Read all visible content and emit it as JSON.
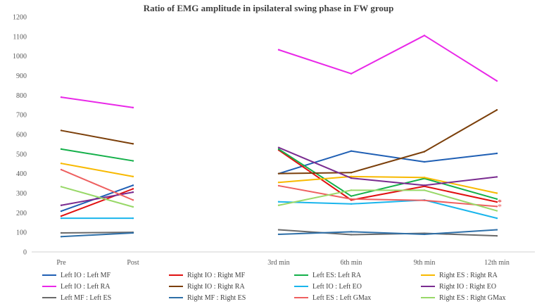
{
  "chart_data": {
    "type": "line",
    "title": "Ratio of EMG amplitude in ipsilateral swing phase in FW group",
    "xlabel": "",
    "ylabel": "",
    "ylim": [
      0,
      1200
    ],
    "yticks": [
      0,
      100,
      200,
      300,
      400,
      500,
      600,
      700,
      800,
      900,
      1000,
      1100,
      1200
    ],
    "grid": false,
    "legend_position": "bottom",
    "categories": [
      "Pre",
      "Post",
      "",
      "3rd min",
      "6th min",
      "9th min",
      "12th min"
    ],
    "series": [
      {
        "name": "Left IO : Left MF",
        "color": "#1f5fb4",
        "values": [
          208,
          340,
          null,
          400,
          515,
          460,
          503
        ]
      },
      {
        "name": "Right IO : Right MF",
        "color": "#e01010",
        "values": [
          183,
          322,
          null,
          520,
          265,
          335,
          255
        ]
      },
      {
        "name": "Left ES: Left RA",
        "color": "#14b04a",
        "values": [
          525,
          465,
          null,
          525,
          285,
          375,
          270
        ]
      },
      {
        "name": "Right ES : Right RA",
        "color": "#f8b900",
        "values": [
          452,
          385,
          null,
          355,
          385,
          380,
          300
        ]
      },
      {
        "name": "Left IO : Left RA",
        "color": "#e928e8",
        "values": [
          790,
          737,
          null,
          1032,
          910,
          1105,
          873
        ]
      },
      {
        "name": "Right IO : Right RA",
        "color": "#7b3f0a",
        "values": [
          620,
          552,
          null,
          400,
          405,
          512,
          725
        ]
      },
      {
        "name": "Left IO : Left EO",
        "color": "#1ab5ec",
        "values": [
          172,
          172,
          null,
          256,
          245,
          265,
          172
        ]
      },
      {
        "name": "Right IO : Right EO",
        "color": "#7a2c90",
        "values": [
          238,
          305,
          null,
          533,
          377,
          340,
          383
        ]
      },
      {
        "name": "Left MF : Left ES",
        "color": "#6a6a6a",
        "values": [
          97,
          100,
          null,
          113,
          88,
          95,
          82
        ]
      },
      {
        "name": "Right MF : Right ES",
        "color": "#2e6fa8",
        "values": [
          78,
          97,
          null,
          90,
          103,
          90,
          113
        ]
      },
      {
        "name": "Left ES : Left GMax",
        "color": "#ee6060",
        "values": [
          420,
          265,
          null,
          338,
          270,
          263,
          232
        ]
      },
      {
        "name": "Right ES : Right GMax",
        "color": "#98d868",
        "values": [
          333,
          230,
          null,
          238,
          315,
          315,
          210
        ]
      }
    ],
    "annotations": [
      {
        "text": "*",
        "series": "Right IO : Right MF",
        "category": "12th min"
      },
      {
        "text": "*",
        "series": "Left ES : Left GMax",
        "category": "12th min"
      }
    ]
  }
}
